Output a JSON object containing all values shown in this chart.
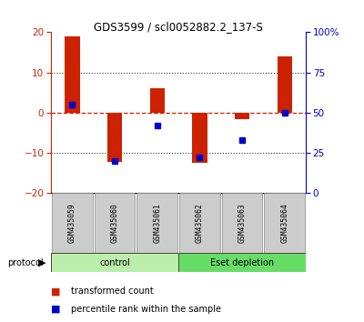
{
  "title": "GDS3599 / scl0052882.2_137-S",
  "samples": [
    "GSM435059",
    "GSM435060",
    "GSM435061",
    "GSM435062",
    "GSM435063",
    "GSM435064"
  ],
  "red_values": [
    19.0,
    -12.2,
    6.0,
    -12.5,
    -1.5,
    14.0
  ],
  "blue_values_pct": [
    55,
    20,
    42,
    22,
    33,
    50
  ],
  "ylim_left": [
    -20,
    20
  ],
  "ylim_right": [
    0,
    100
  ],
  "yticks_left": [
    -20,
    -10,
    0,
    10,
    20
  ],
  "yticks_right": [
    0,
    25,
    50,
    75,
    100
  ],
  "ytick_labels_right": [
    "0",
    "25",
    "50",
    "75",
    "100%"
  ],
  "red_color": "#cc2200",
  "blue_color": "#0000cc",
  "dashed_line_color": "#cc2200",
  "dotted_line_color": "#333333",
  "group_labels": [
    "control",
    "Eset depletion"
  ],
  "group_ranges": [
    [
      0,
      3
    ],
    [
      3,
      6
    ]
  ],
  "group_colors_light": [
    "#bbeeaa",
    "#66dd66"
  ],
  "protocol_label": "protocol",
  "legend_red": "transformed count",
  "legend_blue": "percentile rank within the sample",
  "bar_width": 0.35,
  "blue_marker_size": 5,
  "sample_box_color": "#cccccc",
  "sample_box_edge": "#888888"
}
